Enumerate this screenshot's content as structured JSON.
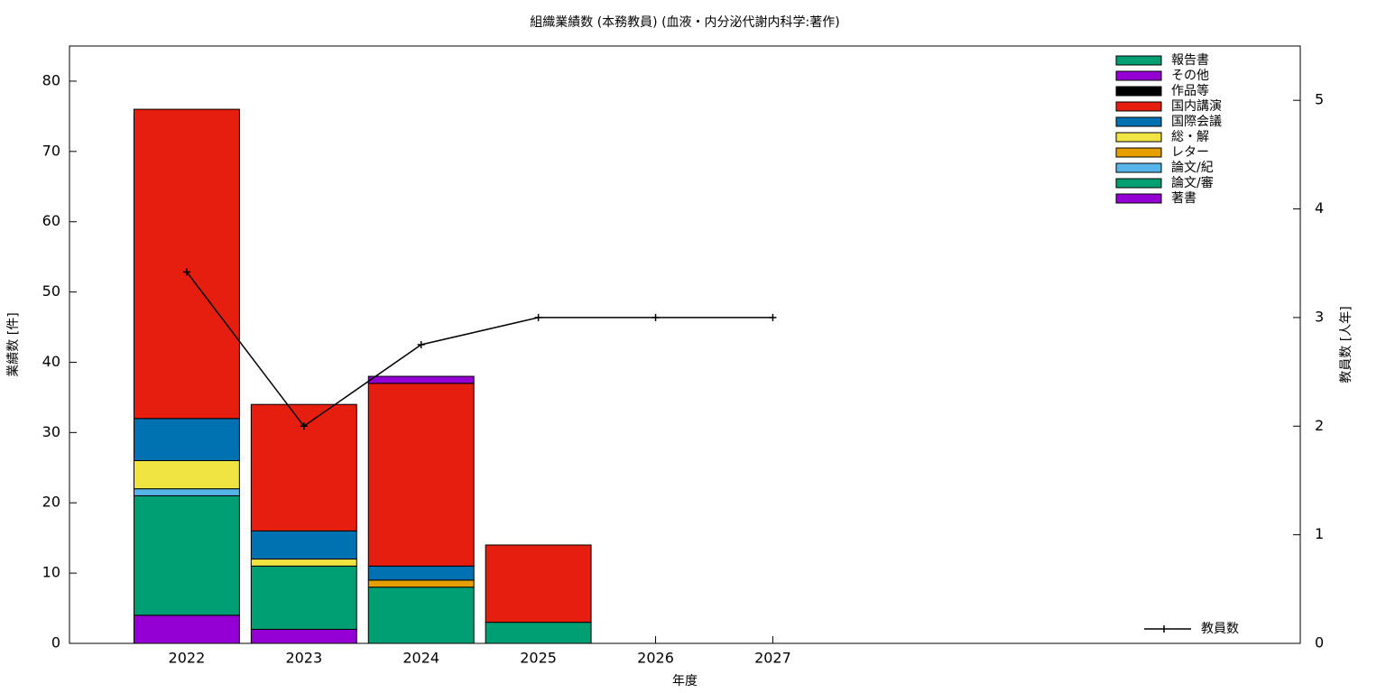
{
  "chart_data": {
    "type": "bar",
    "stacked": true,
    "title": "組織業績数 (本務教員) (血液・内分泌代謝内科学:著作)",
    "xlabel": "年度",
    "ylabel": "業績数 [件]",
    "y2label": "教員数 [人年]",
    "x": [
      2022,
      2023,
      2024,
      2025,
      2026,
      2027
    ],
    "xlim": [
      2021,
      2031.5
    ],
    "xticks": [
      2022,
      2023,
      2024,
      2025,
      2026,
      2027
    ],
    "ylim": [
      0,
      85
    ],
    "yticks": [
      0,
      10,
      20,
      30,
      40,
      50,
      60,
      70,
      80
    ],
    "y2lim": [
      0,
      5.5
    ],
    "y2ticks": [
      0,
      1,
      2,
      3,
      4,
      5
    ],
    "series": [
      {
        "name": "報告書",
        "color": "#009e73",
        "values": [
          0,
          0,
          0,
          0,
          null,
          null
        ]
      },
      {
        "name": "その他",
        "color": "#9400d3",
        "values": [
          0,
          0,
          1,
          0,
          null,
          null
        ]
      },
      {
        "name": "作品等",
        "color": "#000000",
        "values": [
          0,
          0,
          0,
          0,
          null,
          null
        ]
      },
      {
        "name": "国内講演",
        "color": "#e51e10",
        "values": [
          44,
          18,
          26,
          11,
          null,
          null
        ]
      },
      {
        "name": "国際会議",
        "color": "#0072b2",
        "values": [
          6,
          4,
          2,
          0,
          null,
          null
        ]
      },
      {
        "name": "総・解",
        "color": "#f0e442",
        "values": [
          4,
          1,
          0,
          0,
          null,
          null
        ]
      },
      {
        "name": "レター",
        "color": "#e69f00",
        "values": [
          0,
          0,
          1,
          0,
          null,
          null
        ]
      },
      {
        "name": "論文/紀",
        "color": "#56b4e9",
        "values": [
          1,
          0,
          0,
          0,
          null,
          null
        ]
      },
      {
        "name": "論文/審",
        "color": "#009e73",
        "values": [
          17,
          9,
          8,
          3,
          null,
          null
        ]
      },
      {
        "name": "著書",
        "color": "#9400d3",
        "values": [
          4,
          2,
          0,
          0,
          null,
          null
        ]
      },
      {
        "name": "教員数",
        "color": "#000000",
        "type": "line",
        "axis": "y2",
        "values": [
          3.42,
          2,
          2.75,
          3,
          3,
          3
        ]
      }
    ]
  }
}
